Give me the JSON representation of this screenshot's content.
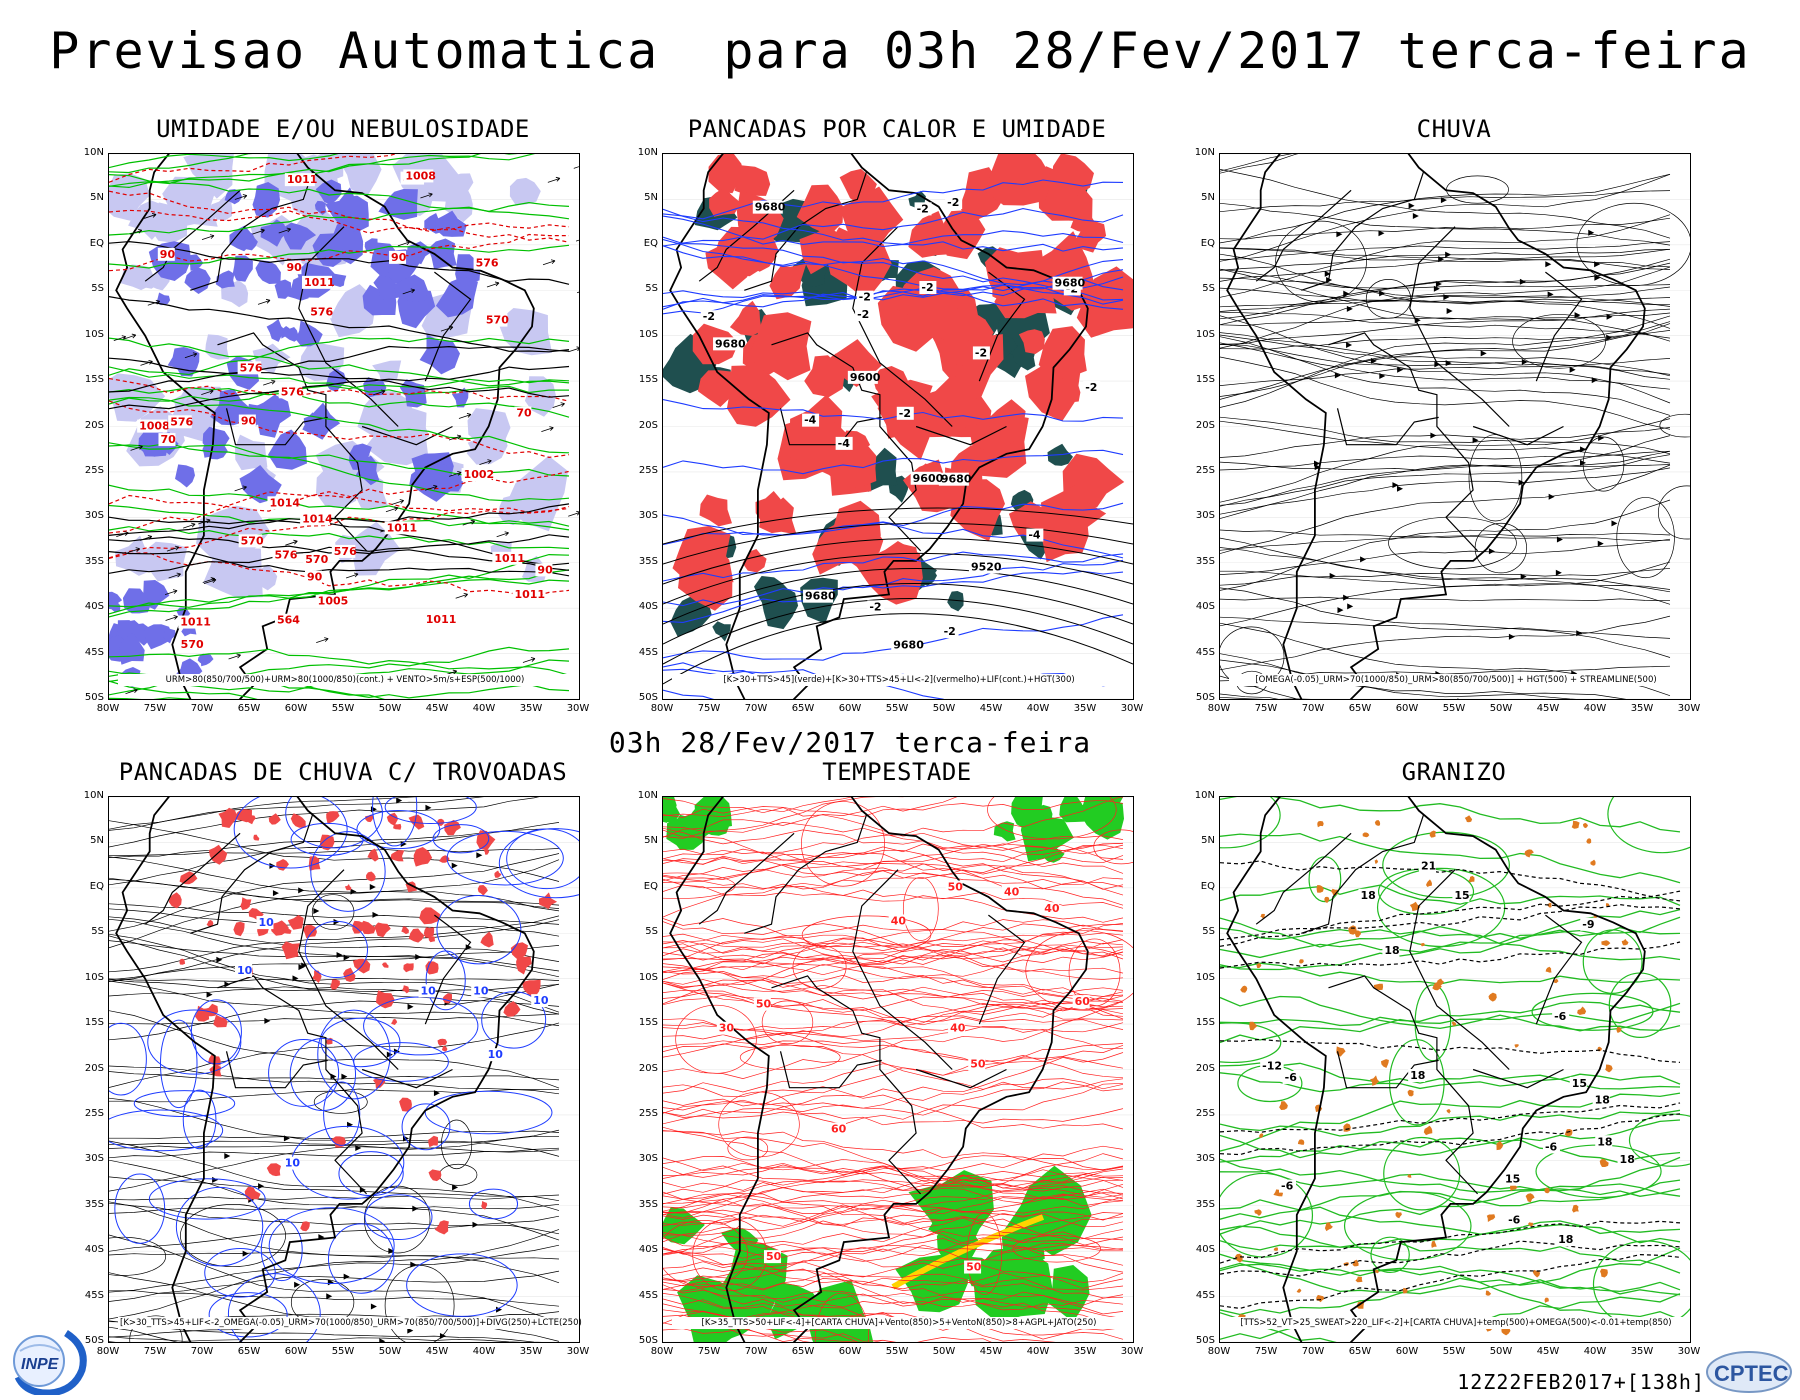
{
  "title": "Previsao Automatica  para 03h 28/Fev/2017 terca-feira",
  "subtitle": "03h 28/Fev/2017 terca-feira",
  "run_stamp": "12Z22FEB2017+[138h]",
  "logos": {
    "inpe": "INPE",
    "cptec": "CPTEC"
  },
  "axes": {
    "lat_labels": [
      "10N",
      "5N",
      "EQ",
      "5S",
      "10S",
      "15S",
      "20S",
      "25S",
      "30S",
      "35S",
      "40S",
      "45S",
      "50S"
    ],
    "lon_labels": [
      "80W",
      "75W",
      "70W",
      "65W",
      "60W",
      "55W",
      "50W",
      "45W",
      "40W",
      "35W",
      "30W"
    ]
  },
  "panels": [
    {
      "id": "umidade",
      "title": "UMIDADE E/OU NEBULOSIDADE",
      "legend": "URM>80(850/700/500)+URM>80(1000/850)(cont.) + VENTO>5m/s+ESP(500/1000)",
      "labels": [
        "576",
        "576",
        "90",
        "1011",
        "90",
        "576",
        "90",
        "576",
        "90",
        "90",
        "1011",
        "1008",
        "576",
        "570",
        "576",
        "90",
        "1011",
        "70",
        "570",
        "576",
        "1011",
        "70",
        "1011",
        "570",
        "576",
        "1011",
        "1014",
        "1014",
        "570",
        "1008",
        "1011",
        "1002",
        "564",
        "1005"
      ],
      "colors": {
        "fill": "#6f6fe8",
        "light": "#c8c8f2",
        "contour_green": "#00c000",
        "contour_red": "#e00000"
      }
    },
    {
      "id": "pancadas-calor",
      "title": "PANCADAS POR CALOR E UMIDADE",
      "legend": "[K>30+TTS>45](verde)+[K>30+TTS>45+LI<-2](vermelho)+LIF(cont.)+HGT(300)",
      "labels": [
        "9680",
        "-2",
        "-2",
        "-4",
        "-2",
        "-2",
        "-2",
        "9680",
        "-2",
        "9680",
        "-2",
        "-4",
        "-2",
        "9680",
        "-2",
        "9680",
        "9680",
        "-2",
        "9600",
        "9600",
        "-2",
        "9520",
        "-4",
        "-2"
      ],
      "colors": {
        "green": "#1f4f4f",
        "red": "#f04848",
        "contour_blue": "#1e3cff"
      }
    },
    {
      "id": "chuva",
      "title": "CHUVA",
      "legend": "[OMEGA(-0.05)_URM>70(1000/850)_URM>80(850/700/500)] + HGT(500) + STREAMLINE(500)",
      "labels": [],
      "colors": {
        "lines": "#000000"
      }
    },
    {
      "id": "pancadas-chuva",
      "title": "PANCADAS DE CHUVA C/ TROVOADAS",
      "legend": "[K>30_TTS>45+LIF<-2_OMEGA(-0.05)_URM>70(1000/850)_URM>70(850/700/500)]+DIVG(250)+LCTE(250)",
      "labels": [
        "10",
        "10",
        "10",
        "10",
        "10",
        "10",
        "10"
      ],
      "colors": {
        "red": "#f04848",
        "blue": "#1e3cff"
      }
    },
    {
      "id": "tempestade",
      "title": "TEMPESTADE",
      "legend": "[K>35_TTS>50+LIF<-4]+[CARTA CHUVA]+Vento(850)>5+VentoN(850)>8+AGPL+JATO(250)",
      "labels": [
        "50",
        "40",
        "60",
        "40",
        "50",
        "60",
        "50",
        "50",
        "40",
        "30",
        "50",
        "40"
      ],
      "colors": {
        "red": "#ff2020",
        "green": "#22cc22",
        "yellow": "#ffd400"
      }
    },
    {
      "id": "granizo",
      "title": "GRANIZO",
      "legend": "[TTS>52_VT>25_SWEAT>220_LIF<-2]+[CARTA CHUVA]+temp(500)+OMEGA(500)<-0.01+temp(850)",
      "labels": [
        "18",
        "-6",
        "-6",
        "18",
        "18",
        "-6",
        "18",
        "-6",
        "18",
        "15",
        "21",
        "-6",
        "15",
        "18",
        "18",
        "-9",
        "15",
        "-12"
      ],
      "colors": {
        "green": "#22bb22",
        "orange": "#e07a20",
        "black": "#000000"
      }
    }
  ]
}
